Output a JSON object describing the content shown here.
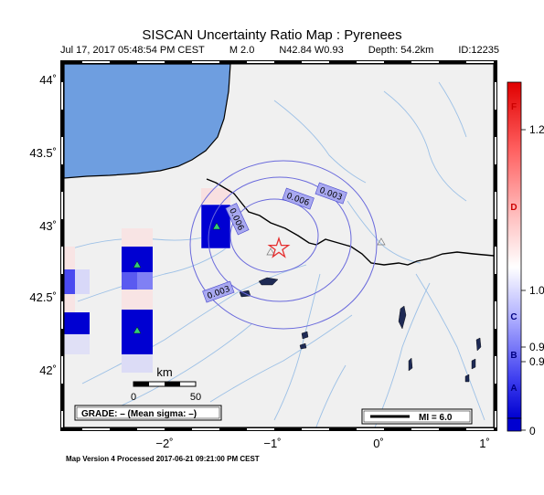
{
  "header": {
    "title": "SISCAN Uncertainty Ratio Map : Pyrenees",
    "datetime": "Jul 17, 2017 05:48:54 PM CEST",
    "magnitude": "M 2.0",
    "location": "N42.84 W0.93",
    "depth": "Depth: 54.2km",
    "event_id": "ID:12235"
  },
  "map": {
    "lat_ticks": [
      "44˚",
      "43.5˚",
      "43˚",
      "42.5˚",
      "42˚"
    ],
    "lon_ticks": [
      "−2˚",
      "−1˚",
      "0˚",
      "1˚"
    ],
    "contour_labels": [
      "0.003",
      "0.006",
      "0.006",
      "0.003"
    ],
    "scale_label": "km",
    "scale_ticks": [
      "0",
      "50"
    ],
    "grade_text": "GRADE: – (Mean sigma: –)",
    "mi_text": "MI = 6.0",
    "colors": {
      "sea": "#6e9ee0",
      "land": "#f0f0f0",
      "cell_dark": "#0000d2",
      "cell_mid": "#5a5af0",
      "contour": "#6a6adc",
      "river": "#9cc0e6",
      "epicenter": "#e53030"
    }
  },
  "colorbar": {
    "letters": [
      "F",
      "D",
      "C",
      "B",
      "A"
    ],
    "values": [
      "1.2",
      "1.0",
      "0.9",
      "0.9",
      "0"
    ]
  },
  "footer": "Map Version 4 Processed 2017-06-21 09:21:00 PM CEST"
}
